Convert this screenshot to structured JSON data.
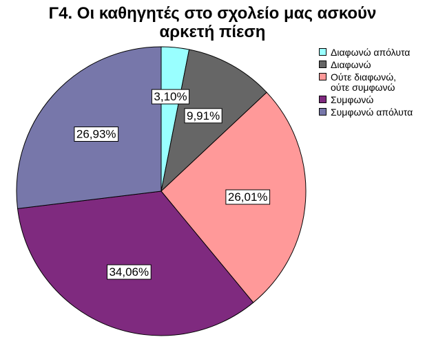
{
  "chart_data": {
    "type": "pie",
    "title": "Γ4. Οι καθηγητές στο σχολείο μας ασκούν αρκετή πίεση",
    "title_lines": [
      "Γ4. Οι καθηγητές στο σχολείο μας ασκούν",
      "αρκετή πίεση"
    ],
    "categories": [
      "Διαφωνώ απόλυτα",
      "Διαφωνώ",
      "Ούτε διαφωνώ,\nούτε συμφωνώ",
      "Συμφωνώ",
      "Συμφωνώ απόλυτα"
    ],
    "values": [
      3.1,
      9.91,
      26.01,
      34.06,
      26.93
    ],
    "data_labels": [
      "3,10%",
      "9,91%",
      "26,01%",
      "34,06%",
      "26,93%"
    ],
    "colors": [
      "#99ffff",
      "#666666",
      "#ff9999",
      "#7f2a7f",
      "#7777aa"
    ],
    "legend_position": "right",
    "start": "top",
    "direction": "clockwise"
  }
}
